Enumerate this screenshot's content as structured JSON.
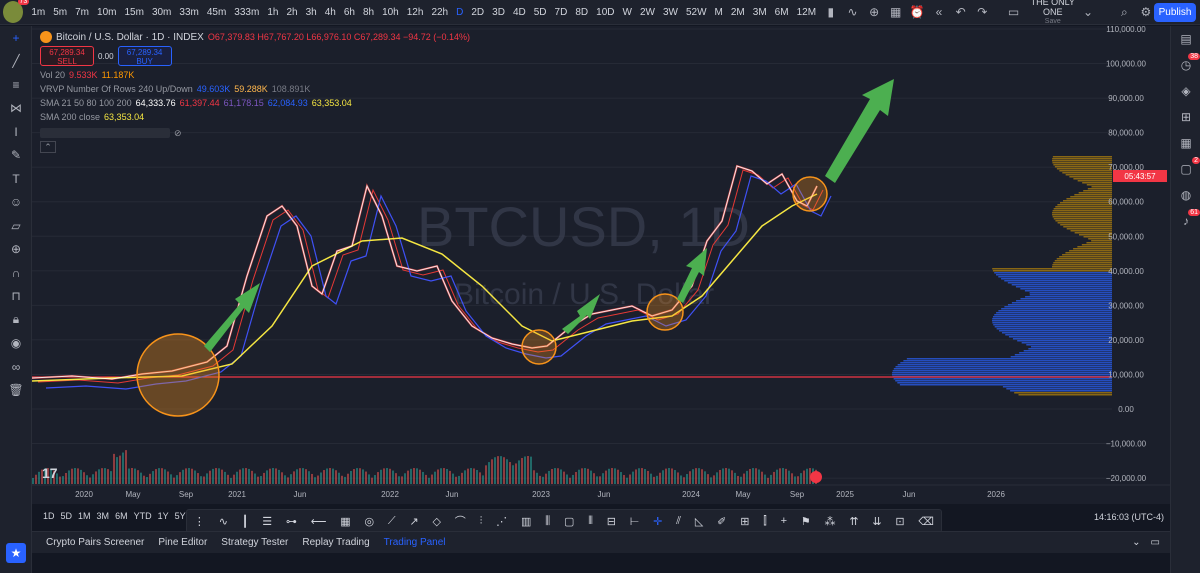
{
  "topbar": {
    "avatar_badge": "73",
    "intervals": [
      "1m",
      "5m",
      "7m",
      "10m",
      "15m",
      "30m",
      "33m",
      "45m",
      "333m",
      "1h",
      "2h",
      "3h",
      "4h",
      "6h",
      "8h",
      "10h",
      "12h",
      "22h",
      "D",
      "2D",
      "3D",
      "4D",
      "5D",
      "7D",
      "8D",
      "10D",
      "W",
      "2W",
      "3W",
      "52W",
      "M",
      "2M",
      "3M",
      "6M",
      "12M"
    ],
    "active_interval": "D",
    "layout_name": "THE ONLY ONE",
    "layout_sub": "Save",
    "publish_label": "Publish"
  },
  "legend": {
    "symbol": "Bitcoin / U.S. Dollar · 1D · INDEX",
    "ohlc": "O67,379.83 H67,767.20 L66,976.10 C67,289.34 −94.72 (−0.14%)",
    "sell_price": "67,289.34",
    "sell_label": "SELL",
    "spread": "0.00",
    "buy_price": "67,289.34",
    "buy_label": "BUY",
    "vol_label": "Vol 20",
    "vol_v1": "9.533K",
    "vol_v2": "11.187K",
    "vrvp_label": "VRVP Number Of Rows 240 Up/Down",
    "vrvp_v1": "49.603K",
    "vrvp_v2": "59.288K",
    "vrvp_v3": "108.891K",
    "sma_label": "SMA 21 50 80 100 200",
    "sma_v1": "64,333.76",
    "sma_v2": "61,397.44",
    "sma_v3": "61,178.15",
    "sma_v4": "62,084.93",
    "sma_v5": "63,353.04",
    "sma200_label": "SMA 200 close",
    "sma200_v": "63,353.04"
  },
  "watermark": {
    "main": "BTCUSD, 1D",
    "sub": "Bitcoin / U.S. Dollar"
  },
  "price_axis": {
    "labels": [
      "110,000.00",
      "100,000.00",
      "90,000.00",
      "80,000.00",
      "70,000.00",
      "60,000.00",
      "50,000.00",
      "40,000.00",
      "30,000.00",
      "20,000.00",
      "10,000.00",
      "0.00",
      "−10,000.00",
      "−20,000.00"
    ],
    "current_badge": "05:43:57"
  },
  "time_axis": [
    "2020",
    "May",
    "Sep",
    "2021",
    "Jun",
    "2022",
    "Jun",
    "2023",
    "Jun",
    "2024",
    "May",
    "Sep",
    "2025",
    "Jun",
    "2026"
  ],
  "ranges": [
    "1D",
    "5D",
    "1M",
    "3M",
    "6M",
    "YTD",
    "1Y",
    "5Y"
  ],
  "clock": "14:16:03 (UTC-4)",
  "panels": [
    "Crypto Pairs Screener",
    "Pine Editor",
    "Strategy Tester",
    "Replay Trading",
    "Trading Panel"
  ],
  "active_panel": "Trading Panel",
  "right_badges": {
    "alerts": "38",
    "chat": "2",
    "notifications": "61"
  },
  "colors": {
    "accent": "#2962ff",
    "up": "#26a69a",
    "down": "#ef5350",
    "sma200": "#f5e642",
    "arrow": "#4caf50",
    "circle": "#f7931a"
  }
}
